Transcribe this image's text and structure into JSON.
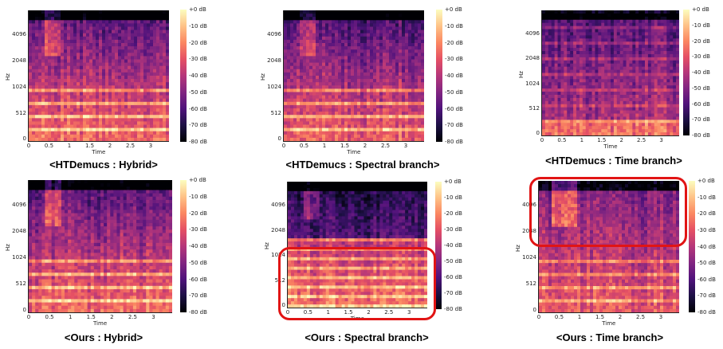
{
  "colors": {
    "highlight": "#e11414",
    "background": "#ffffff"
  },
  "axis": {
    "y_label": "Hz",
    "x_label": "Time",
    "y_ticks": [
      "4096",
      "2048",
      "1024",
      "512",
      "0"
    ],
    "x_ticks": [
      "0",
      "0.5",
      "1",
      "1.5",
      "2",
      "2.5",
      "3"
    ],
    "colorbar_ticks": [
      "+0 dB",
      "-10 dB",
      "-20 dB",
      "-30 dB",
      "-40 dB",
      "-50 dB",
      "-60 dB",
      "-70 dB",
      "-80 dB"
    ]
  },
  "panels": [
    {
      "caption": "<HTDemucs : Hybrid>"
    },
    {
      "caption": "<HTDemucs : Spectral branch>"
    },
    {
      "caption": "<HTDemucs : Time branch>"
    },
    {
      "caption": "<Ours : Hybrid>"
    },
    {
      "caption": "<Ours : Spectral branch>"
    },
    {
      "caption": "<Ours : Time branch>"
    }
  ],
  "highlights": [
    {
      "panel": 4,
      "region": "low-frequency bands"
    },
    {
      "panel": 5,
      "region": "high-frequency bands"
    }
  ]
}
